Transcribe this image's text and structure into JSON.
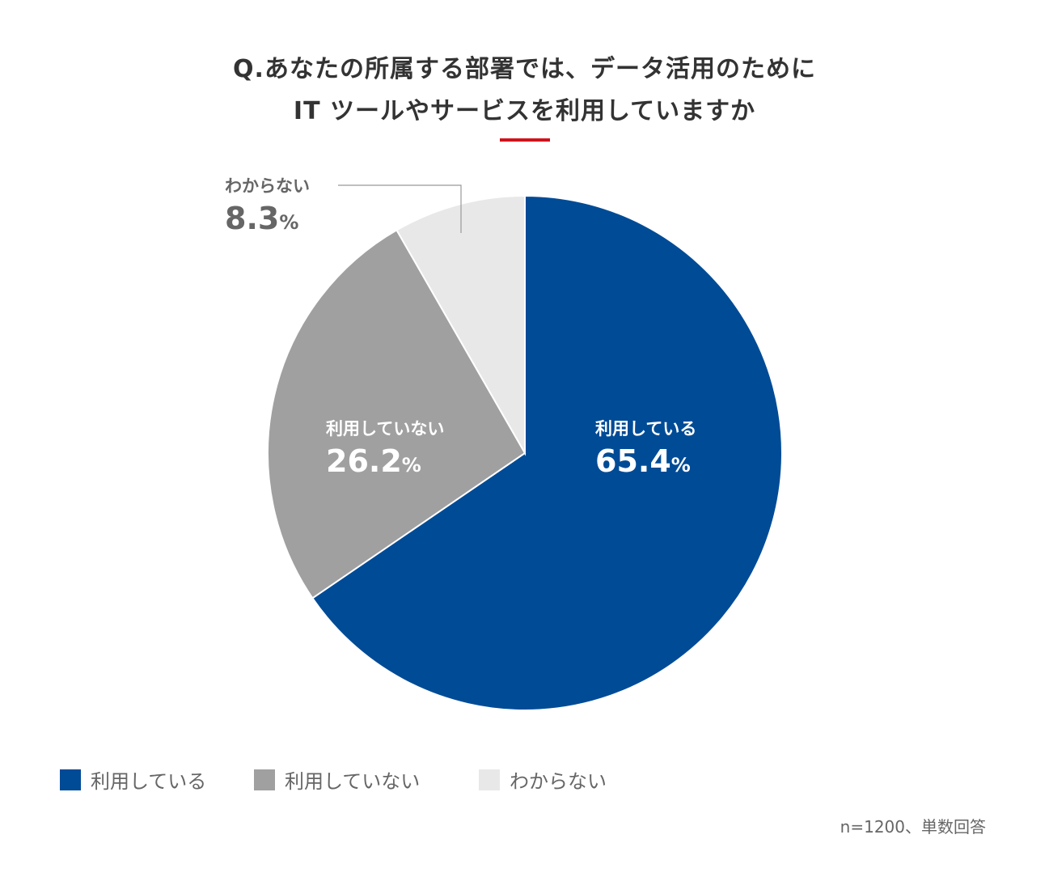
{
  "chart_data": {
    "type": "pie",
    "title_line1": "Q.あなたの所属する部署では、データ活用のために",
    "title_line2": "IT ツールやサービスを利用していますか",
    "slices": [
      {
        "label": "利用している",
        "value": 65.4,
        "value_text": "65.4",
        "color": "#004b96"
      },
      {
        "label": "利用していない",
        "value": 26.2,
        "value_text": "26.2",
        "color": "#a0a0a0"
      },
      {
        "label": "わからない",
        "value": 8.3,
        "value_text": "8.3",
        "color": "#e8e8e8"
      }
    ],
    "percent_sign": "%",
    "legend_placement": "bottom-left",
    "note": "n=1200、単数回答"
  },
  "colors": {
    "accent": "#d0121b"
  }
}
